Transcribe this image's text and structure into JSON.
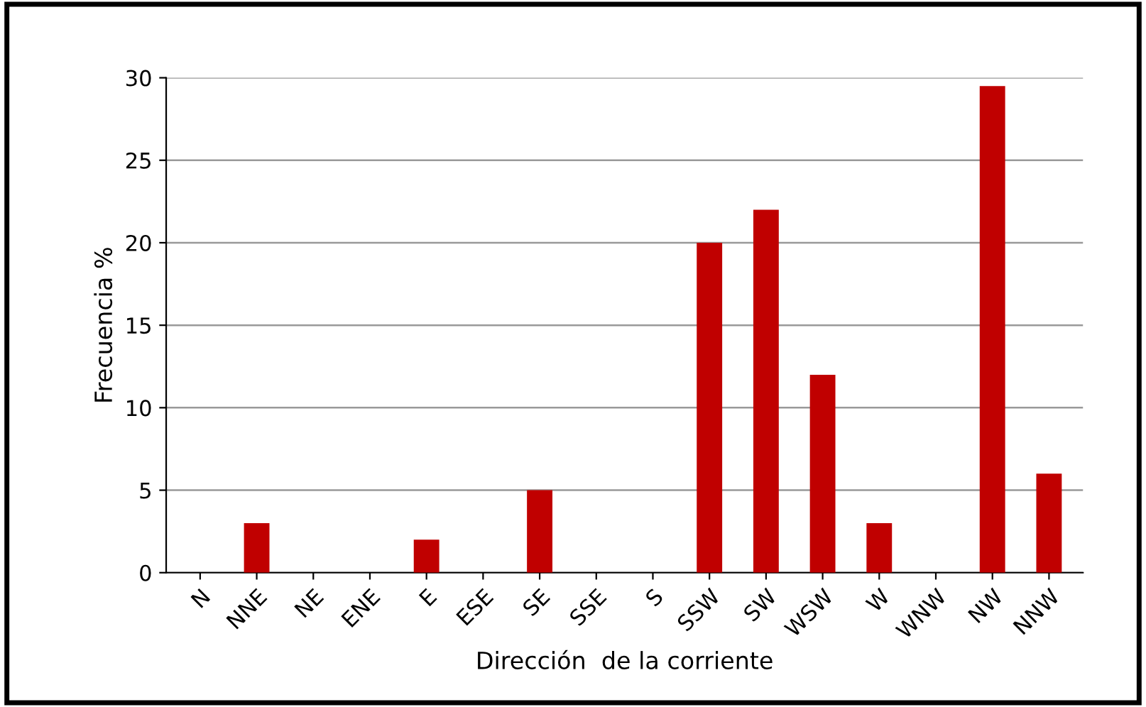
{
  "chart_data": {
    "type": "bar",
    "xlabel": "Dirección  de la corriente",
    "ylabel": "Frecuencia %",
    "categories": [
      "N",
      "NNE",
      "NE",
      "ENE",
      "E",
      "ESE",
      "SE",
      "SSE",
      "S",
      "SSW",
      "SW",
      "WSW",
      "W",
      "WNW",
      "NW",
      "NNW"
    ],
    "values": [
      0,
      3,
      0,
      0,
      2,
      0,
      5,
      0,
      0,
      20,
      22,
      12,
      3,
      0,
      29.5,
      6
    ],
    "color": "#c00000",
    "ylim": [
      0,
      30
    ],
    "yticks": [
      0,
      5,
      10,
      15,
      20,
      25,
      30
    ],
    "grid": "y"
  }
}
